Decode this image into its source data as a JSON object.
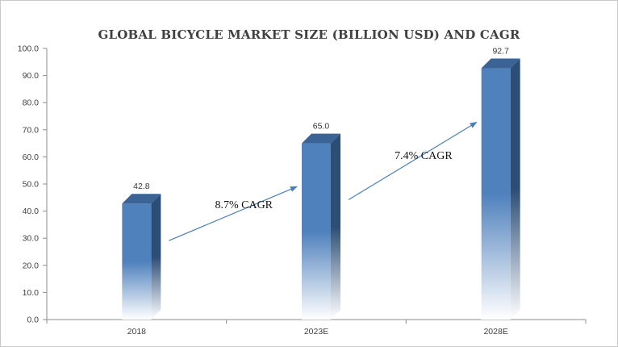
{
  "chart_data": {
    "type": "bar",
    "title": "GLOBAL BICYCLE  MARKET SIZE  (BILLION USD) AND CAGR",
    "categories": [
      "2018",
      "2023E",
      "2028E"
    ],
    "values": [
      42.8,
      65.0,
      92.7
    ],
    "value_labels": [
      "42.8",
      "65.0",
      "92.7"
    ],
    "ylim": [
      0,
      100
    ],
    "yticks": [
      "0.0",
      "10.0",
      "20.0",
      "30.0",
      "40.0",
      "50.0",
      "60.0",
      "70.0",
      "80.0",
      "90.0",
      "100.0"
    ],
    "xlabel": "",
    "ylabel": "",
    "grid": false,
    "legend": "none",
    "annotations": [
      {
        "text": "8.7% CAGR",
        "from": "2018",
        "to": "2023E"
      },
      {
        "text": "7.4% CAGR",
        "from": "2023E",
        "to": "2028E"
      }
    ],
    "colors": {
      "bar_front": "#4f81bd",
      "bar_side": "#2c4d75",
      "bar_top": "#3b6396",
      "arrow": "#4a7ebb",
      "axis": "#8c8c8c"
    }
  }
}
